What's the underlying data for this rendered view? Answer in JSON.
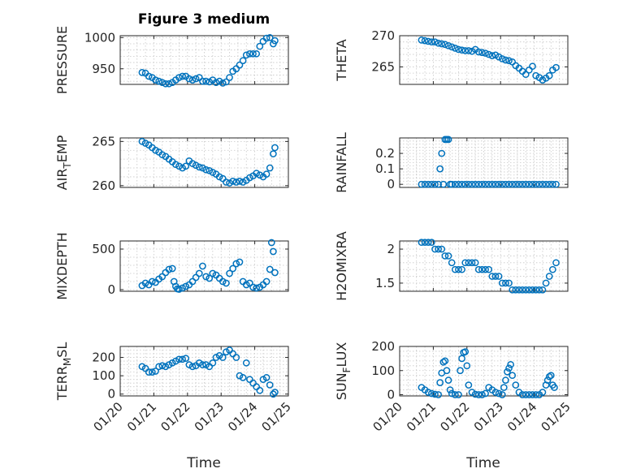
{
  "chart_data": {
    "type": "scatter",
    "title": "Figure 3 medium",
    "marker": "circle-open",
    "color": "#0072BD",
    "xlabel": "Time",
    "x_range": [
      0,
      5
    ],
    "x_tick_labels": [
      "01/20",
      "01/21",
      "01/22",
      "01/23",
      "01/24",
      "01/25"
    ],
    "panels": [
      {
        "name": "pressure",
        "ylabel": "PRESSURE",
        "ylim": [
          925,
          1003
        ],
        "yticks": [
          950,
          1000
        ],
        "show_xticks": false,
        "x": [
          0.65,
          0.75,
          0.85,
          0.95,
          1.05,
          1.15,
          1.25,
          1.35,
          1.45,
          1.55,
          1.65,
          1.75,
          1.85,
          1.95,
          2.05,
          2.15,
          2.25,
          2.35,
          2.45,
          2.55,
          2.65,
          2.75,
          2.85,
          2.95,
          3.05,
          3.15,
          3.25,
          3.35,
          3.45,
          3.55,
          3.65,
          3.75,
          3.85,
          3.95,
          4.05,
          4.15,
          4.25,
          4.35,
          4.45,
          4.55,
          4.6
        ],
        "values": [
          944,
          943,
          938,
          936,
          932,
          930,
          928,
          926,
          926,
          928,
          932,
          936,
          938,
          938,
          934,
          932,
          934,
          936,
          930,
          930,
          929,
          932,
          928,
          930,
          927,
          929,
          936,
          946,
          950,
          956,
          963,
          972,
          974,
          974,
          974,
          986,
          994,
          999,
          1000,
          990,
          995
        ]
      },
      {
        "name": "theta",
        "ylabel": "THETA",
        "ylim": [
          262.2,
          270
        ],
        "yticks": [
          265,
          270
        ],
        "show_xticks": false,
        "x": [
          0.65,
          0.75,
          0.85,
          0.95,
          1.05,
          1.15,
          1.25,
          1.35,
          1.45,
          1.55,
          1.65,
          1.75,
          1.85,
          1.95,
          2.05,
          2.15,
          2.25,
          2.35,
          2.45,
          2.55,
          2.65,
          2.75,
          2.85,
          2.95,
          3.05,
          3.15,
          3.25,
          3.35,
          3.45,
          3.55,
          3.65,
          3.75,
          3.85,
          3.95,
          4.05,
          4.15,
          4.25,
          4.35,
          4.45,
          4.55,
          4.65
        ],
        "values": [
          269.3,
          269.2,
          269.1,
          269.0,
          269.0,
          268.8,
          268.7,
          268.6,
          268.4,
          268.2,
          268.0,
          267.8,
          267.7,
          267.6,
          267.6,
          267.5,
          267.8,
          267.4,
          267.3,
          267.2,
          267.0,
          266.8,
          266.9,
          266.6,
          266.3,
          266.1,
          266.0,
          265.8,
          265.2,
          264.8,
          264.3,
          263.8,
          264.5,
          265.1,
          263.6,
          263.3,
          262.9,
          263.2,
          263.6,
          264.5,
          264.9
        ]
      },
      {
        "name": "air-temp",
        "ylabel": "AIR",
        "ylabel_sub": "T",
        "ylabel_tail": "EMP",
        "ylim": [
          259.8,
          265.4
        ],
        "yticks": [
          260,
          265
        ],
        "show_xticks": false,
        "x": [
          0.65,
          0.75,
          0.85,
          0.95,
          1.05,
          1.15,
          1.25,
          1.35,
          1.45,
          1.55,
          1.65,
          1.75,
          1.85,
          1.95,
          2.05,
          2.15,
          2.25,
          2.35,
          2.45,
          2.55,
          2.65,
          2.75,
          2.85,
          2.95,
          3.05,
          3.15,
          3.25,
          3.35,
          3.45,
          3.55,
          3.65,
          3.75,
          3.85,
          3.95,
          4.05,
          4.15,
          4.25,
          4.35,
          4.45,
          4.55,
          4.6
        ],
        "values": [
          265.0,
          264.8,
          264.6,
          264.3,
          264.0,
          263.8,
          263.5,
          263.3,
          263.0,
          262.7,
          262.4,
          262.2,
          262.0,
          262.2,
          262.8,
          262.5,
          262.3,
          262.1,
          262.0,
          261.8,
          261.7,
          261.5,
          261.3,
          261.0,
          260.8,
          260.4,
          260.3,
          260.5,
          260.4,
          260.5,
          260.4,
          260.6,
          260.9,
          261.1,
          261.4,
          261.2,
          261.0,
          261.3,
          262.0,
          263.6,
          264.3
        ]
      },
      {
        "name": "rainfall",
        "ylabel": "RAINFALL",
        "ylim": [
          -0.02,
          0.3
        ],
        "yticks": [
          0,
          0.1,
          0.2
        ],
        "show_xticks": false,
        "x": [
          0.65,
          0.75,
          0.85,
          0.95,
          1.05,
          1.15,
          1.2,
          1.25,
          1.3,
          1.35,
          1.4,
          1.45,
          1.5,
          1.55,
          1.65,
          1.75,
          1.85,
          1.95,
          2.05,
          2.15,
          2.25,
          2.35,
          2.45,
          2.55,
          2.65,
          2.75,
          2.85,
          2.95,
          3.05,
          3.15,
          3.25,
          3.35,
          3.45,
          3.55,
          3.65,
          3.75,
          3.85,
          3.95,
          4.05,
          4.15,
          4.25,
          4.35,
          4.45,
          4.55,
          4.65
        ],
        "values": [
          0,
          0,
          0,
          0,
          0,
          0,
          0.1,
          0.2,
          0,
          0.29,
          0.29,
          0.29,
          0,
          0,
          0,
          0,
          0,
          0,
          0,
          0,
          0,
          0,
          0,
          0,
          0,
          0,
          0,
          0,
          0,
          0,
          0,
          0,
          0,
          0,
          0,
          0,
          0,
          0,
          0,
          0,
          0,
          0,
          0,
          0,
          0
        ]
      },
      {
        "name": "mixdepth",
        "ylabel": "MIXDEPTH",
        "ylim": [
          -20,
          600
        ],
        "yticks": [
          0,
          500
        ],
        "show_xticks": false,
        "x": [
          0.65,
          0.75,
          0.85,
          0.95,
          1.05,
          1.15,
          1.25,
          1.35,
          1.45,
          1.55,
          1.6,
          1.65,
          1.7,
          1.75,
          1.85,
          1.95,
          2.05,
          2.15,
          2.25,
          2.35,
          2.45,
          2.55,
          2.65,
          2.75,
          2.85,
          2.95,
          3.05,
          3.15,
          3.25,
          3.35,
          3.45,
          3.55,
          3.65,
          3.75,
          3.85,
          3.95,
          4.05,
          4.15,
          4.25,
          4.35,
          4.45,
          4.5,
          4.55,
          4.6
        ],
        "values": [
          50,
          80,
          60,
          100,
          90,
          130,
          160,
          210,
          250,
          260,
          100,
          40,
          10,
          5,
          20,
          40,
          60,
          100,
          150,
          200,
          290,
          160,
          140,
          200,
          180,
          140,
          100,
          80,
          200,
          260,
          320,
          340,
          100,
          60,
          80,
          30,
          20,
          30,
          60,
          100,
          250,
          580,
          470,
          210
        ]
      },
      {
        "name": "h2omixra",
        "ylabel": "H2OMIXRA",
        "ylim": [
          1.38,
          2.12
        ],
        "yticks": [
          1.5,
          2
        ],
        "show_xticks": false,
        "x": [
          0.65,
          0.75,
          0.85,
          0.95,
          1.05,
          1.15,
          1.25,
          1.35,
          1.45,
          1.55,
          1.65,
          1.75,
          1.85,
          1.95,
          2.05,
          2.15,
          2.25,
          2.35,
          2.45,
          2.55,
          2.65,
          2.75,
          2.85,
          2.95,
          3.05,
          3.15,
          3.25,
          3.35,
          3.45,
          3.55,
          3.65,
          3.75,
          3.85,
          3.95,
          4.05,
          4.15,
          4.25,
          4.35,
          4.45,
          4.55,
          4.65
        ],
        "values": [
          2.1,
          2.1,
          2.1,
          2.1,
          2.0,
          2.0,
          2.0,
          1.9,
          1.9,
          1.8,
          1.7,
          1.7,
          1.7,
          1.8,
          1.8,
          1.8,
          1.8,
          1.7,
          1.7,
          1.7,
          1.7,
          1.6,
          1.6,
          1.6,
          1.5,
          1.5,
          1.5,
          1.4,
          1.4,
          1.4,
          1.4,
          1.4,
          1.4,
          1.4,
          1.4,
          1.4,
          1.4,
          1.5,
          1.6,
          1.7,
          1.8
        ]
      },
      {
        "name": "terrmsl",
        "ylabel": "TERR",
        "ylabel_sub": "M",
        "ylabel_tail": "SL",
        "ylim": [
          -10,
          260
        ],
        "yticks": [
          0,
          100,
          200
        ],
        "show_xticks": true,
        "x": [
          0.65,
          0.75,
          0.85,
          0.95,
          1.05,
          1.15,
          1.25,
          1.35,
          1.45,
          1.55,
          1.65,
          1.75,
          1.85,
          1.95,
          2.05,
          2.15,
          2.25,
          2.35,
          2.45,
          2.55,
          2.65,
          2.75,
          2.85,
          2.95,
          3.05,
          3.15,
          3.25,
          3.35,
          3.45,
          3.55,
          3.65,
          3.75,
          3.85,
          3.95,
          4.05,
          4.15,
          4.25,
          4.35,
          4.45,
          4.55,
          4.6
        ],
        "values": [
          150,
          140,
          120,
          120,
          125,
          150,
          155,
          150,
          160,
          170,
          180,
          190,
          190,
          195,
          160,
          150,
          155,
          170,
          160,
          160,
          150,
          170,
          200,
          210,
          200,
          230,
          240,
          220,
          200,
          100,
          90,
          170,
          80,
          60,
          40,
          20,
          80,
          90,
          50,
          0,
          10
        ]
      },
      {
        "name": "sunflux",
        "ylabel": "SUN",
        "ylabel_sub": "F",
        "ylabel_tail": "LUX",
        "ylim": [
          -5,
          200
        ],
        "yticks": [
          0,
          100,
          200
        ],
        "show_xticks": true,
        "x": [
          0.65,
          0.75,
          0.85,
          0.95,
          1.05,
          1.15,
          1.2,
          1.25,
          1.3,
          1.35,
          1.4,
          1.45,
          1.5,
          1.55,
          1.65,
          1.75,
          1.8,
          1.85,
          1.9,
          1.95,
          2.0,
          2.05,
          2.15,
          2.25,
          2.35,
          2.45,
          2.55,
          2.65,
          2.75,
          2.85,
          2.95,
          3.05,
          3.1,
          3.15,
          3.2,
          3.25,
          3.3,
          3.35,
          3.45,
          3.55,
          3.65,
          3.75,
          3.85,
          3.95,
          4.05,
          4.15,
          4.25,
          4.35,
          4.4,
          4.45,
          4.5,
          4.55,
          4.6
        ],
        "values": [
          30,
          20,
          10,
          5,
          2,
          0,
          50,
          90,
          135,
          140,
          100,
          60,
          20,
          5,
          0,
          0,
          100,
          150,
          175,
          178,
          120,
          40,
          10,
          2,
          0,
          0,
          5,
          30,
          20,
          10,
          5,
          0,
          30,
          60,
          95,
          110,
          125,
          80,
          40,
          10,
          0,
          0,
          0,
          0,
          0,
          0,
          10,
          40,
          60,
          75,
          80,
          40,
          30
        ]
      }
    ]
  }
}
